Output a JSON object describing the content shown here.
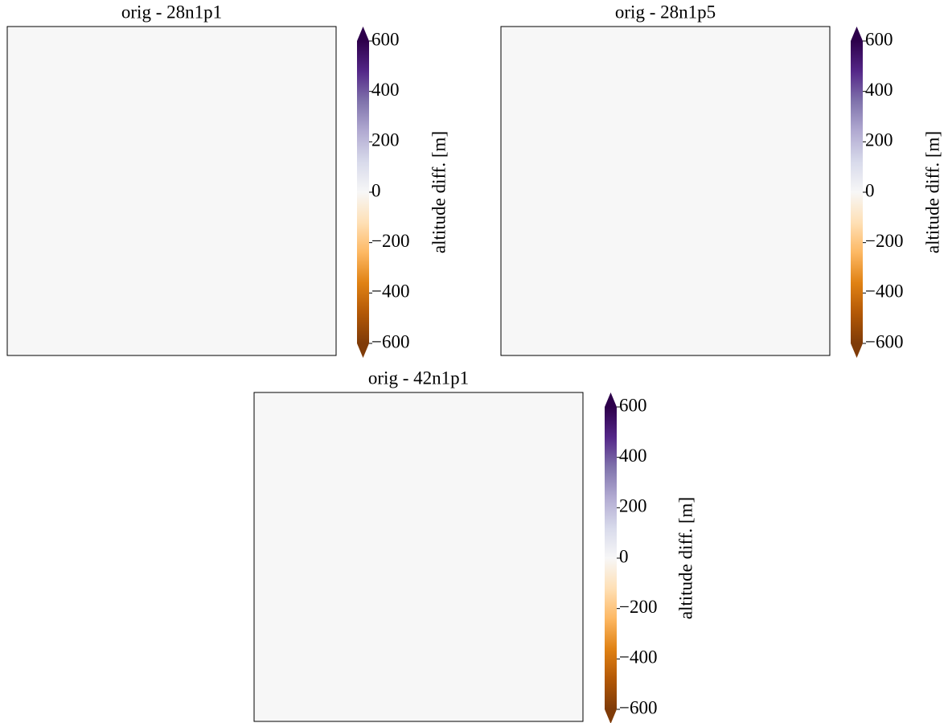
{
  "chart_data": [
    {
      "type": "heatmap",
      "title": "orig - 28n1p1",
      "colorbar": {
        "label": "altitude diff. [m]",
        "lim": [
          -600,
          600
        ],
        "ticks": [
          {
            "value": -600,
            "label": "−600"
          },
          {
            "value": -400,
            "label": "−400"
          },
          {
            "value": -200,
            "label": "−200"
          },
          0,
          200,
          400,
          600
        ],
        "colors": [
          "#7f3b08",
          "#b35806",
          "#e08214",
          "#fdb863",
          "#fee0b6",
          "#f7f7f7",
          "#d8daeb",
          "#b2abd2",
          "#8073ac",
          "#542788",
          "#2d004b"
        ],
        "extend": "both"
      }
    },
    {
      "type": "heatmap",
      "title": "orig - 28n1p5",
      "colorbar": {
        "label": "altitude diff. [m]",
        "lim": [
          -600,
          600
        ],
        "ticks": [
          {
            "value": -600,
            "label": "−600"
          },
          {
            "value": -400,
            "label": "−400"
          },
          {
            "value": -200,
            "label": "−200"
          },
          0,
          200,
          400,
          600
        ],
        "colors": [
          "#7f3b08",
          "#b35806",
          "#e08214",
          "#fdb863",
          "#fee0b6",
          "#f7f7f7",
          "#d8daeb",
          "#b2abd2",
          "#8073ac",
          "#542788",
          "#2d004b"
        ],
        "extend": "both"
      }
    },
    {
      "type": "heatmap",
      "title": "orig - 42n1p1",
      "colorbar": {
        "label": "altitude diff. [m]",
        "lim": [
          -600,
          600
        ],
        "ticks": [
          {
            "value": -600,
            "label": "−600"
          },
          {
            "value": -400,
            "label": "−400"
          },
          {
            "value": -200,
            "label": "−200"
          },
          0,
          200,
          400,
          600
        ],
        "colors": [
          "#7f3b08",
          "#b35806",
          "#e08214",
          "#fdb863",
          "#fee0b6",
          "#f7f7f7",
          "#d8daeb",
          "#b2abd2",
          "#8073ac",
          "#542788",
          "#2d004b"
        ],
        "extend": "both"
      }
    }
  ]
}
